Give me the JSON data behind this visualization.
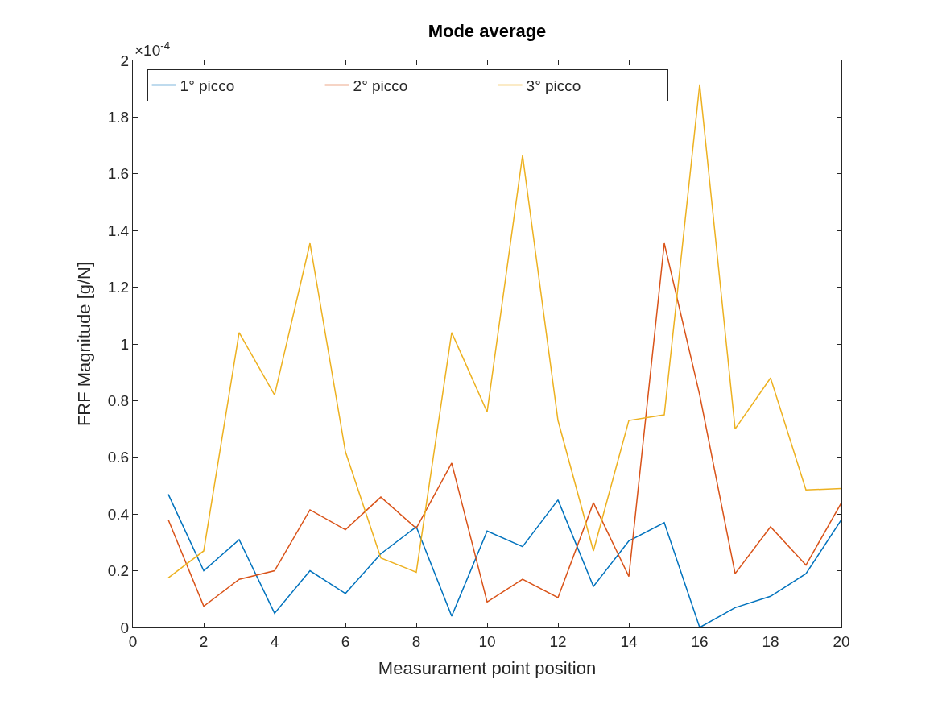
{
  "chart_data": {
    "type": "line",
    "title": "Mode average",
    "xlabel": "Measurament point position",
    "ylabel": "FRF Magnitude [g/N]",
    "annotations": [
      "×10$^{-4}$"
    ],
    "x": [
      1,
      2,
      3,
      4,
      5,
      6,
      7,
      8,
      9,
      10,
      11,
      12,
      13,
      14,
      15,
      16,
      17,
      18,
      19,
      20
    ],
    "series": [
      {
        "name": "1° picco",
        "color": "#0072bd",
        "values": [
          0.47,
          0.2,
          0.31,
          0.05,
          0.2,
          0.12,
          0.26,
          0.355,
          0.04,
          0.34,
          0.285,
          0.45,
          0.145,
          0.305,
          0.37,
          0,
          0.07,
          0.11,
          0.19,
          0.38
        ]
      },
      {
        "name": "2° picco",
        "color": "#d95319",
        "values": [
          0.38,
          0.075,
          0.17,
          0.2,
          0.415,
          0.345,
          0.46,
          0.35,
          0.58,
          0.09,
          0.17,
          0.105,
          0.44,
          0.18,
          1.355,
          0.82,
          0.19,
          0.355,
          0.22,
          0.44
        ]
      },
      {
        "name": "3° picco",
        "color": "#edb120",
        "values": [
          0.175,
          0.27,
          1.04,
          0.82,
          1.355,
          0.62,
          0.245,
          0.195,
          1.04,
          0.76,
          1.665,
          0.73,
          0.27,
          0.73,
          0.75,
          1.915,
          0.7,
          0.88,
          0.485,
          0.49
        ]
      }
    ],
    "xlim": [
      0,
      20
    ],
    "xticks": [
      0,
      2,
      4,
      6,
      8,
      10,
      12,
      14,
      16,
      18,
      20
    ],
    "ylim": [
      0,
      2
    ],
    "yticks": [
      0,
      0.2,
      0.4,
      0.6,
      0.8,
      1,
      1.2,
      1.4,
      1.6,
      1.8,
      2
    ],
    "legend": "top left",
    "marker": "none",
    "line_style": "solid"
  }
}
